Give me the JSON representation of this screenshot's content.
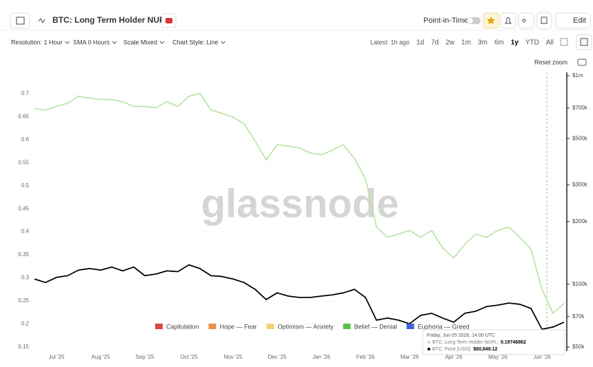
{
  "header": {
    "title": "BTC: Long Term Holder NUPL",
    "point_in_time": "Point-in-Time",
    "edit": "Edit"
  },
  "toolbar": {
    "controls": [
      "Resolution: 1 Hour",
      "SMA 0 Hours",
      "Scale Mixed",
      "Chart Style: Line"
    ],
    "latest": "Latest: 1h ago",
    "ranges": [
      "1d",
      "7d",
      "2w",
      "1m",
      "3m",
      "6m",
      "1y",
      "YTD",
      "All"
    ],
    "reset_zoom": "Reset zoom"
  },
  "watermark": "glassnode",
  "tooltip": {
    "date": "Friday, Jun 05 2026, 14:00 UTC",
    "rows": [
      {
        "label": "BTC: Long Term Holder NUPL:",
        "value": "0.19746862"
      },
      {
        "label": "BTC: Price [USD]:",
        "value": "$60,848.12"
      }
    ]
  },
  "chart_data": {
    "type": "line",
    "categories": [
      null,
      null,
      "Jul '25",
      null,
      null,
      null,
      "Aug '25",
      null,
      null,
      null,
      "Sep '25",
      null,
      null,
      null,
      "Oct '25",
      null,
      null,
      null,
      "Nov '25",
      null,
      null,
      null,
      "Dec '25",
      null,
      null,
      null,
      "Jan '26",
      null,
      null,
      null,
      "Feb '26",
      null,
      null,
      null,
      "Mar '26",
      null,
      null,
      null,
      "Apr '26",
      null,
      null,
      null,
      "May '26",
      null,
      null,
      null,
      "Jun '26",
      null,
      null
    ],
    "series": [
      {
        "color": "#b5e3a2",
        "values": [
          0.667,
          0.664,
          0.672,
          0.679,
          0.694,
          0.69,
          0.687,
          0.687,
          0.682,
          0.672,
          0.672,
          0.669,
          0.682,
          0.672,
          0.694,
          0.7,
          0.664,
          0.657,
          0.649,
          0.634,
          0.597,
          0.556,
          0.589,
          0.586,
          0.582,
          0.571,
          0.567,
          0.577,
          0.589,
          0.559,
          0.515,
          0.41,
          0.388,
          0.395,
          0.403,
          0.388,
          0.403,
          0.365,
          0.343,
          0.373,
          0.395,
          0.388,
          0.403,
          0.41,
          0.388,
          0.362,
          0.275,
          0.223,
          0.245
        ]
      },
      {
        "color": "#000000",
        "axis": "y2",
        "values": [
          106000,
          102000,
          108000,
          110000,
          117000,
          119000,
          117000,
          121000,
          116000,
          121000,
          110000,
          112000,
          116000,
          115000,
          124000,
          119000,
          110000,
          109000,
          106000,
          102000,
          94600,
          84500,
          91000,
          87800,
          86500,
          86500,
          87800,
          89000,
          91000,
          94600,
          86500,
          67300,
          68900,
          67300,
          64700,
          71000,
          72600,
          68900,
          65800,
          72600,
          74300,
          78300,
          79500,
          81300,
          80200,
          76600,
          60900,
          62400,
          65800
        ]
      }
    ],
    "ylim": [
      0.141,
      0.746
    ],
    "yticks": [
      0.15,
      0.2,
      0.25,
      0.3,
      0.35,
      0.4,
      0.45,
      0.5,
      0.55,
      0.6,
      0.65,
      0.7
    ],
    "y2lim": [
      47800,
      1039000
    ],
    "y2scale": "log",
    "y2ticks": [
      {
        "value": 50000,
        "label": "$50k"
      },
      {
        "value": 70000,
        "label": "$70k"
      },
      {
        "value": 100000,
        "label": "$100k"
      },
      {
        "value": 200000,
        "label": "$200k"
      },
      {
        "value": 300000,
        "label": "$300k"
      },
      {
        "value": 500000,
        "label": "$500k"
      },
      {
        "value": 700000,
        "label": "$700k"
      },
      {
        "value": 1000000,
        "label": "$1m"
      }
    ],
    "grid": true,
    "legend": [
      {
        "name": "Capitulation",
        "color": "#d9473f"
      },
      {
        "name": "Hope — Fear",
        "color": "#e9924a"
      },
      {
        "name": "Optimism — Anxiety",
        "color": "#efd46e"
      },
      {
        "name": "Belief — Denial",
        "color": "#5bbf4a"
      },
      {
        "name": "Euphoria — Greed",
        "color": "#4162d8"
      }
    ]
  }
}
